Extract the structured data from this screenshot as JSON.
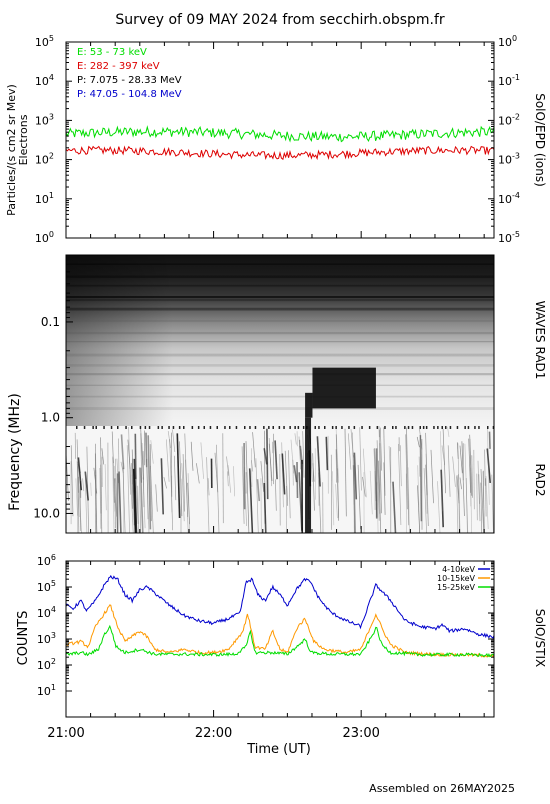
{
  "title": "Survey of 09 MAY 2024 from secchirh.obspm.fr",
  "footer": "Assembled on 26MAY2025",
  "colors": {
    "green": "#00dd00",
    "red": "#dd0000",
    "black": "#000000",
    "blue": "#0000cc",
    "orange": "#ff9900"
  },
  "chart_data": [
    {
      "type": "line",
      "name": "particles",
      "ylabel": "Particles/(s cm2 sr Mev)",
      "ylabel2": "Electrons",
      "right_label": "SolO/EPD (ions)",
      "yscale": "log",
      "ylim": [
        1,
        100000
      ],
      "y_tick_labels": [
        "10",
        "10",
        "10",
        "10",
        "10",
        "10"
      ],
      "y_tick_exponents": [
        "0",
        "1",
        "2",
        "3",
        "4",
        "5"
      ],
      "y2scale": "log",
      "y2lim": [
        1e-05,
        1
      ],
      "y2_tick_labels": [
        "10",
        "10",
        "10",
        "10",
        "10",
        "10"
      ],
      "y2_tick_exponents": [
        "-5",
        "-4",
        "-3",
        "-2",
        "-1",
        "0"
      ],
      "legend": [
        "E: 53 - 73 keV",
        "E: 282 - 397 keV",
        "P: 7.075 - 28.33 MeV",
        "P: 47.05 - 104.8 MeV"
      ],
      "legend_colors": [
        "#00dd00",
        "#dd0000",
        "#000000",
        "#0000cc"
      ],
      "x_range_hours": [
        21.0,
        23.9
      ],
      "series": [
        {
          "name": "E: 53 - 73 keV",
          "color": "#00dd00",
          "level": 450,
          "noise": 0.13
        },
        {
          "name": "E: 282 - 397 keV",
          "color": "#dd0000",
          "level": 150,
          "noise": 0.1
        }
      ]
    },
    {
      "type": "heatmap",
      "name": "waves",
      "ylabel": "Frequency (MHz)",
      "right_label_top": "WAVES RAD1",
      "right_label_bottom": "RAD2",
      "yscale": "log",
      "ylim": [
        0.02,
        16
      ],
      "y_ticks": [
        0.1,
        1.0,
        10.0
      ],
      "y_tick_labels": [
        "0.1",
        "1.0",
        "10.0"
      ],
      "x_range_hours": [
        21.0,
        23.9
      ],
      "bursts": [
        {
          "t_start": 22.62,
          "t_end": 22.67,
          "f_low": 0.55,
          "f_high": 1.0
        },
        {
          "t_start": 22.67,
          "t_end": 23.1,
          "f_low": 0.3,
          "f_high": 0.8
        }
      ]
    },
    {
      "type": "line",
      "name": "stix",
      "ylabel": "COUNTS",
      "right_label": "SolO/STIX",
      "yscale": "log",
      "ylim": [
        1,
        1000000
      ],
      "y_tick_labels": [
        "10",
        "10",
        "10",
        "10",
        "10",
        "10"
      ],
      "y_tick_exponents": [
        "1",
        "2",
        "3",
        "4",
        "5",
        "6"
      ],
      "xlabel": "Time (UT)",
      "x_range_hours": [
        21.0,
        23.9
      ],
      "x_ticks": [
        "21:00",
        "22:00",
        "23:00"
      ],
      "x_tick_values": [
        21.0,
        22.0,
        23.0
      ],
      "series": [
        {
          "name": "4-10keV",
          "color": "#0000cc",
          "points": [
            [
              21.0,
              20000
            ],
            [
              21.05,
              15000
            ],
            [
              21.1,
              30000
            ],
            [
              21.14,
              12000
            ],
            [
              21.2,
              30000
            ],
            [
              21.26,
              120000
            ],
            [
              21.3,
              250000
            ],
            [
              21.35,
              200000
            ],
            [
              21.4,
              50000
            ],
            [
              21.45,
              30000
            ],
            [
              21.5,
              80000
            ],
            [
              21.55,
              100000
            ],
            [
              21.6,
              60000
            ],
            [
              21.7,
              20000
            ],
            [
              21.8,
              8000
            ],
            [
              21.9,
              5000
            ],
            [
              22.0,
              4000
            ],
            [
              22.1,
              6000
            ],
            [
              22.18,
              10000
            ],
            [
              22.22,
              150000
            ],
            [
              22.26,
              200000
            ],
            [
              22.3,
              50000
            ],
            [
              22.35,
              30000
            ],
            [
              22.4,
              100000
            ],
            [
              22.45,
              50000
            ],
            [
              22.5,
              20000
            ],
            [
              22.56,
              80000
            ],
            [
              22.62,
              200000
            ],
            [
              22.66,
              150000
            ],
            [
              22.7,
              50000
            ],
            [
              22.75,
              20000
            ],
            [
              22.8,
              10000
            ],
            [
              22.9,
              5000
            ],
            [
              23.0,
              3000
            ],
            [
              23.05,
              20000
            ],
            [
              23.1,
              120000
            ],
            [
              23.15,
              60000
            ],
            [
              23.2,
              30000
            ],
            [
              23.3,
              5000
            ],
            [
              23.4,
              3000
            ],
            [
              23.5,
              2500
            ],
            [
              23.55,
              3500
            ],
            [
              23.6,
              2000
            ],
            [
              23.7,
              2500
            ],
            [
              23.8,
              1500
            ],
            [
              23.9,
              1200
            ]
          ]
        },
        {
          "name": "10-15keV",
          "color": "#ff9900",
          "points": [
            [
              21.0,
              600
            ],
            [
              21.1,
              800
            ],
            [
              21.15,
              500
            ],
            [
              21.2,
              3000
            ],
            [
              21.25,
              8000
            ],
            [
              21.3,
              20000
            ],
            [
              21.35,
              3000
            ],
            [
              21.4,
              800
            ],
            [
              21.5,
              2000
            ],
            [
              21.55,
              1200
            ],
            [
              21.6,
              400
            ],
            [
              21.7,
              300
            ],
            [
              21.8,
              400
            ],
            [
              21.9,
              300
            ],
            [
              22.0,
              300
            ],
            [
              22.1,
              400
            ],
            [
              22.2,
              2000
            ],
            [
              22.23,
              10000
            ],
            [
              22.28,
              500
            ],
            [
              22.35,
              400
            ],
            [
              22.4,
              2000
            ],
            [
              22.45,
              400
            ],
            [
              22.5,
              300
            ],
            [
              22.57,
              3000
            ],
            [
              22.62,
              6000
            ],
            [
              22.68,
              800
            ],
            [
              22.75,
              400
            ],
            [
              22.9,
              300
            ],
            [
              23.0,
              400
            ],
            [
              23.05,
              2000
            ],
            [
              23.1,
              9000
            ],
            [
              23.15,
              2000
            ],
            [
              23.2,
              600
            ],
            [
              23.3,
              300
            ],
            [
              23.5,
              250
            ],
            [
              23.7,
              250
            ],
            [
              23.9,
              220
            ]
          ]
        },
        {
          "name": "15-25keV",
          "color": "#00dd00",
          "points": [
            [
              21.0,
              250
            ],
            [
              21.1,
              300
            ],
            [
              21.15,
              250
            ],
            [
              21.22,
              400
            ],
            [
              21.26,
              1500
            ],
            [
              21.3,
              3000
            ],
            [
              21.34,
              500
            ],
            [
              21.4,
              300
            ],
            [
              21.5,
              400
            ],
            [
              21.6,
              260
            ],
            [
              21.8,
              260
            ],
            [
              22.0,
              250
            ],
            [
              22.15,
              260
            ],
            [
              22.22,
              500
            ],
            [
              22.25,
              2000
            ],
            [
              22.28,
              300
            ],
            [
              22.4,
              300
            ],
            [
              22.5,
              260
            ],
            [
              22.58,
              600
            ],
            [
              22.62,
              1000
            ],
            [
              22.66,
              300
            ],
            [
              22.8,
              260
            ],
            [
              23.0,
              260
            ],
            [
              23.08,
              1500
            ],
            [
              23.1,
              3000
            ],
            [
              23.14,
              600
            ],
            [
              23.2,
              300
            ],
            [
              23.4,
              250
            ],
            [
              23.7,
              250
            ],
            [
              23.9,
              230
            ]
          ]
        }
      ],
      "legend": [
        "4-10keV",
        "10-15keV",
        "15-25keV"
      ],
      "legend_colors": [
        "#0000cc",
        "#ff9900",
        "#00dd00"
      ]
    }
  ]
}
